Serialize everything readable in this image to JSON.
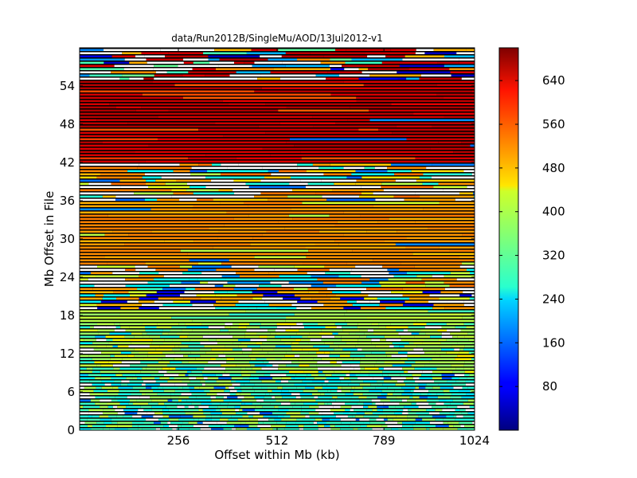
{
  "chart_data": {
    "type": "heatmap",
    "title": "data/Run2012B/SingleMu/AOD/13Jul2012-v1",
    "xlabel": "Offset within Mb (kb)",
    "ylabel": "Mb Offset in File",
    "xlim": [
      0,
      1024
    ],
    "ylim": [
      0,
      60
    ],
    "x_ticks": [
      256,
      512,
      789,
      1024
    ],
    "x_tick_labels": [
      "256",
      "512",
      "789",
      "1024"
    ],
    "y_ticks": [
      0,
      6,
      12,
      18,
      24,
      30,
      36,
      42,
      48,
      54
    ],
    "y_tick_labels": [
      "0",
      "6",
      "12",
      "18",
      "24",
      "30",
      "36",
      "42",
      "48",
      "54"
    ],
    "colorbar": {
      "colormap": "jet",
      "vmin": 0,
      "vmax": 700,
      "ticks": [
        80,
        160,
        240,
        320,
        400,
        480,
        560,
        640
      ],
      "tick_labels": [
        "80",
        "160",
        "240",
        "320",
        "400",
        "480",
        "560",
        "640"
      ]
    },
    "background_color": "#000000",
    "row_step": 0.5,
    "bands": [
      {
        "y_from": 0,
        "y_to": 9,
        "mix": [
          [
            300,
            0.45
          ],
          [
            380,
            0.2
          ],
          [
            250,
            0.15
          ],
          [
            -1,
            0.15
          ],
          [
            160,
            0.05
          ]
        ],
        "seg_kb": [
          8,
          40
        ]
      },
      {
        "y_from": 9,
        "y_to": 17,
        "mix": [
          [
            380,
            0.55
          ],
          [
            300,
            0.15
          ],
          [
            -1,
            0.15
          ],
          [
            430,
            0.1
          ],
          [
            240,
            0.05
          ]
        ],
        "seg_kb": [
          10,
          60
        ]
      },
      {
        "y_from": 17,
        "y_to": 19,
        "mix": [
          [
            380,
            0.85
          ],
          [
            300,
            0.15
          ]
        ],
        "seg_kb": [
          80,
          300
        ]
      },
      {
        "y_from": 19,
        "y_to": 22,
        "mix": [
          [
            500,
            0.35
          ],
          [
            -1,
            0.3
          ],
          [
            270,
            0.15
          ],
          [
            420,
            0.1
          ],
          [
            70,
            0.1
          ]
        ],
        "seg_kb": [
          20,
          90
        ]
      },
      {
        "y_from": 22,
        "y_to": 26,
        "mix": [
          [
            -1,
            0.3
          ],
          [
            520,
            0.25
          ],
          [
            400,
            0.15
          ],
          [
            280,
            0.15
          ],
          [
            180,
            0.15
          ]
        ],
        "seg_kb": [
          20,
          120
        ]
      },
      {
        "y_from": 26,
        "y_to": 36,
        "mix": [
          [
            510,
            0.8
          ],
          [
            490,
            0.12
          ],
          [
            400,
            0.05
          ],
          [
            180,
            0.03
          ]
        ],
        "seg_kb": [
          60,
          400
        ]
      },
      {
        "y_from": 36,
        "y_to": 42,
        "mix": [
          [
            -1,
            0.3
          ],
          [
            520,
            0.25
          ],
          [
            400,
            0.1
          ],
          [
            280,
            0.1
          ],
          [
            170,
            0.1
          ],
          [
            470,
            0.15
          ]
        ],
        "seg_kb": [
          20,
          160
        ]
      },
      {
        "y_from": 42,
        "y_to": 55,
        "mix": [
          [
            650,
            0.85
          ],
          [
            560,
            0.1
          ],
          [
            180,
            0.03
          ],
          [
            440,
            0.02
          ]
        ],
        "seg_kb": [
          40,
          500
        ]
      },
      {
        "y_from": 55,
        "y_to": 60,
        "mix": [
          [
            -1,
            0.35
          ],
          [
            650,
            0.3
          ],
          [
            500,
            0.12
          ],
          [
            320,
            0.08
          ],
          [
            200,
            0.08
          ],
          [
            60,
            0.07
          ]
        ],
        "seg_kb": [
          20,
          150
        ]
      }
    ]
  }
}
